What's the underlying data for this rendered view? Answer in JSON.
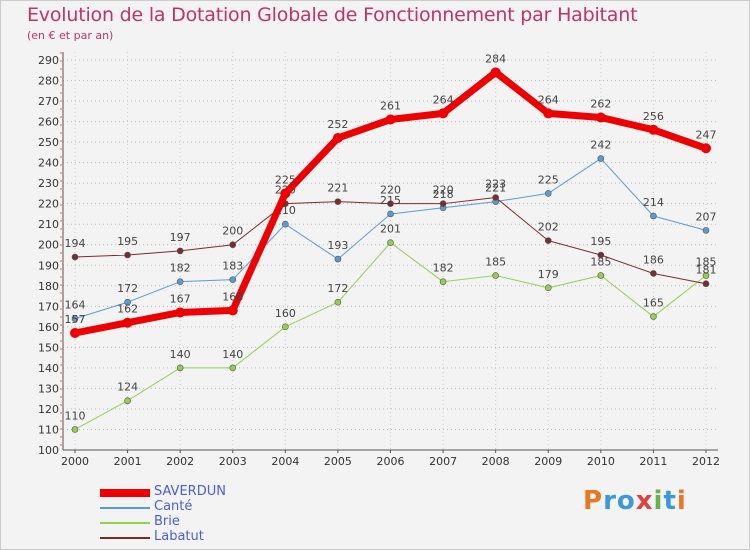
{
  "title": "Evolution de la Dotation Globale de Fonctionnement par Habitant",
  "subtitle": "(en € et par an)",
  "logo": {
    "text": "Proxiti",
    "letter_colors": [
      "#e87722",
      "#3a9ad9",
      "#3a9ad9",
      "#e04040",
      "#6ab04c",
      "#3a9ad9",
      "#e87722"
    ]
  },
  "chart_data": {
    "type": "line",
    "title": "Evolution de la Dotation Globale de Fonctionnement par Habitant",
    "subtitle": "(en € et par an)",
    "x": [
      2000,
      2001,
      2002,
      2003,
      2004,
      2005,
      2006,
      2007,
      2008,
      2009,
      2010,
      2011,
      2012
    ],
    "ylim": [
      100,
      290
    ],
    "ytick_step": 10,
    "grid": "horizontal dotted",
    "legend_position": "bottom-left",
    "series": [
      {
        "name": "SAVERDUN",
        "color": "#ee0000",
        "width": 7,
        "values": [
          157,
          162,
          167,
          168,
          225,
          252,
          261,
          264,
          284,
          264,
          262,
          256,
          247
        ]
      },
      {
        "name": "Canté",
        "color": "#5b9bd5",
        "width": 1,
        "values": [
          164,
          172,
          182,
          183,
          210,
          193,
          215,
          218,
          221,
          225,
          242,
          214,
          207
        ]
      },
      {
        "name": "Brie",
        "color": "#92d050",
        "width": 1,
        "values": [
          110,
          124,
          140,
          140,
          160,
          172,
          201,
          182,
          185,
          179,
          185,
          165,
          185
        ]
      },
      {
        "name": "Labatut",
        "color": "#7b2c2c",
        "width": 1,
        "values": [
          194,
          195,
          197,
          200,
          220,
          221,
          220,
          220,
          223,
          202,
          195,
          186,
          181
        ]
      }
    ]
  }
}
